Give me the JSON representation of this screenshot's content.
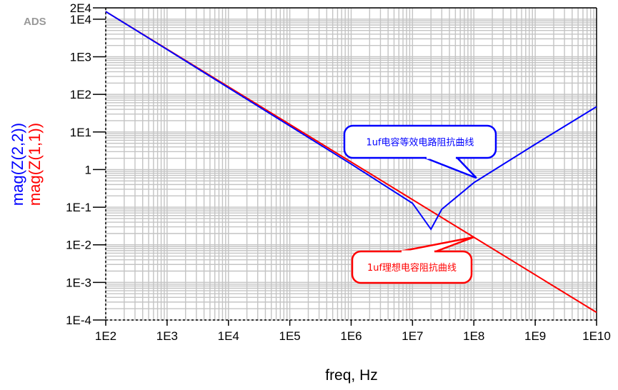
{
  "logo": "ADS",
  "chart_data": {
    "type": "line",
    "xlabel": "freq, Hz",
    "ylabels": [
      {
        "text": "mag(Z(2,2))",
        "color": "#0000ff"
      },
      {
        "text": "mag(Z(1,1))",
        "color": "#ff0000"
      }
    ],
    "x_scale": "log",
    "y_scale": "log",
    "xlim": [
      100,
      10000000000.0
    ],
    "ylim": [
      0.0001,
      20000.0
    ],
    "grid": true,
    "x_ticks": [
      {
        "v": 100.0,
        "label": "1E2"
      },
      {
        "v": 1000.0,
        "label": "1E3"
      },
      {
        "v": 10000.0,
        "label": "1E4"
      },
      {
        "v": 100000.0,
        "label": "1E5"
      },
      {
        "v": 1000000.0,
        "label": "1E6"
      },
      {
        "v": 10000000.0,
        "label": "1E7"
      },
      {
        "v": 100000000.0,
        "label": "1E8"
      },
      {
        "v": 1000000000.0,
        "label": "1E9"
      },
      {
        "v": 10000000000.0,
        "label": "1E10"
      }
    ],
    "y_ticks": [
      {
        "v": 20000.0,
        "label": "2E4"
      },
      {
        "v": 10000.0,
        "label": "1E4"
      },
      {
        "v": 1000.0,
        "label": "1E3"
      },
      {
        "v": 100.0,
        "label": "1E2"
      },
      {
        "v": 10,
        "label": "1E1"
      },
      {
        "v": 1,
        "label": "1"
      },
      {
        "v": 0.1,
        "label": "1E-1"
      },
      {
        "v": 0.01,
        "label": "1E-2"
      },
      {
        "v": 0.001,
        "label": "1E-3"
      },
      {
        "v": 0.0001,
        "label": "1E-4"
      }
    ],
    "series": [
      {
        "name": "mag(Z(2,2))",
        "color": "#0000ff",
        "x": [
          100.0,
          1000.0,
          10000.0,
          100000.0,
          1000000.0,
          10000000.0,
          20000000.0,
          30000000.0,
          100000000.0,
          1000000000.0,
          10000000000.0
        ],
        "y": [
          15900,
          1560,
          150,
          14.5,
          1.4,
          0.127,
          0.026,
          0.088,
          0.45,
          4.7,
          47
        ]
      },
      {
        "name": "mag(Z(1,1))",
        "color": "#ff0000",
        "x": [
          100.0,
          10000000000.0
        ],
        "y": [
          15900,
          0.000159
        ]
      }
    ],
    "annotations": [
      {
        "text": "1uf电容等效电路阻抗曲线",
        "color": "#0000ff",
        "target": {
          "x": 110000000.0,
          "y": 0.6
        }
      },
      {
        "text": "1uf理想电容阻抗曲线",
        "color": "#ff0000",
        "target": {
          "x": 100000000.0,
          "y": 0.016
        }
      }
    ]
  }
}
